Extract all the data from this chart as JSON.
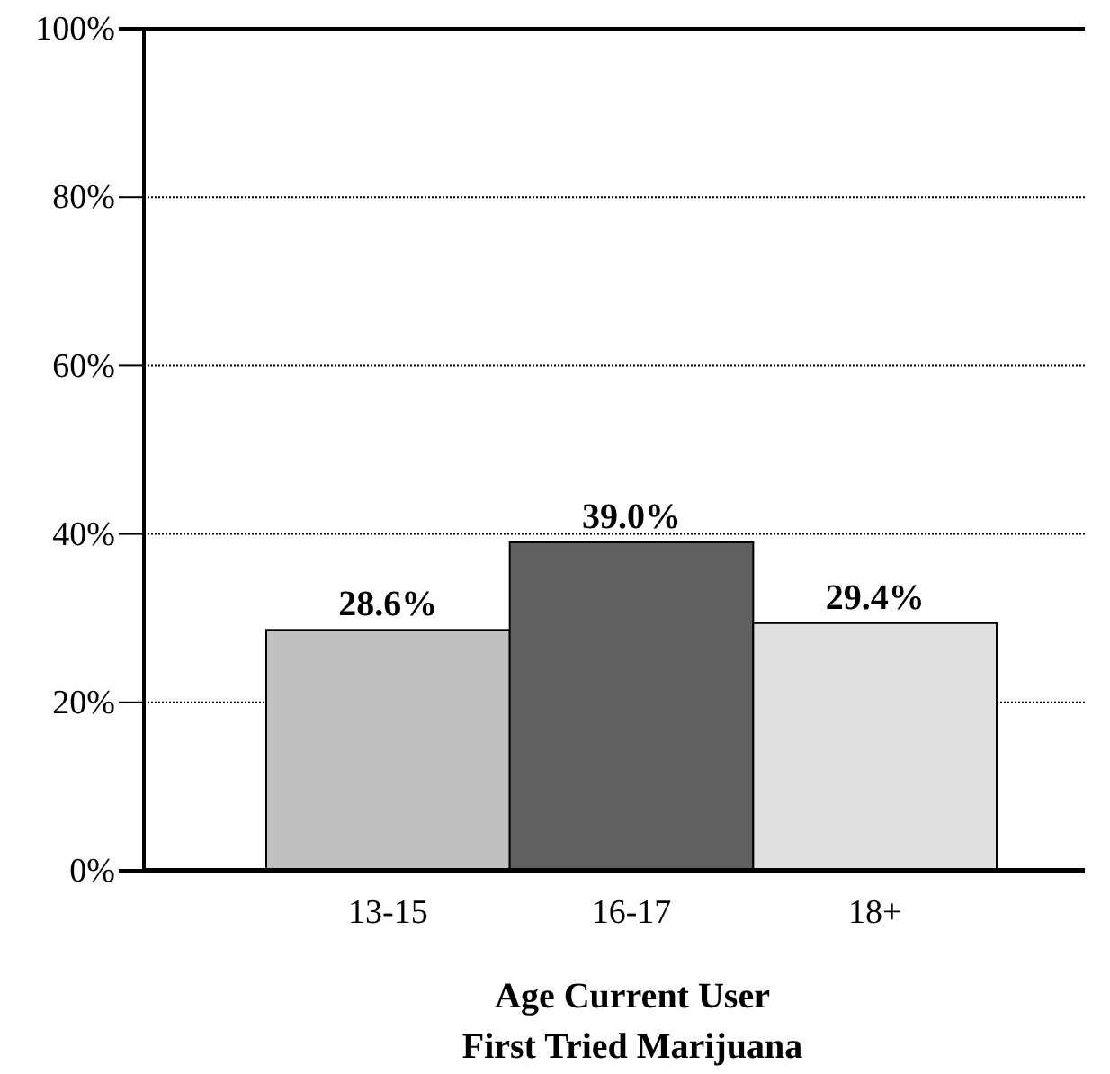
{
  "chart_data": {
    "type": "bar",
    "categories": [
      "13-15",
      "16-17",
      "18+"
    ],
    "values": [
      28.6,
      39.0,
      29.4
    ],
    "colors": [
      "#c0c0c0",
      "#606060",
      "#e0e0e0"
    ],
    "value_labels": [
      "28.6%",
      "39.0%",
      "29.4%"
    ],
    "xlabel": "Age Current User\nFirst Tried Marijuana",
    "ylim": [
      0,
      100
    ],
    "yticks": [
      {
        "value": 0,
        "label": "0%"
      },
      {
        "value": 20,
        "label": "20%"
      },
      {
        "value": 40,
        "label": "40%"
      },
      {
        "value": 60,
        "label": "60%"
      },
      {
        "value": 80,
        "label": "80%"
      },
      {
        "value": 100,
        "label": "100%"
      }
    ],
    "grid": "y"
  }
}
